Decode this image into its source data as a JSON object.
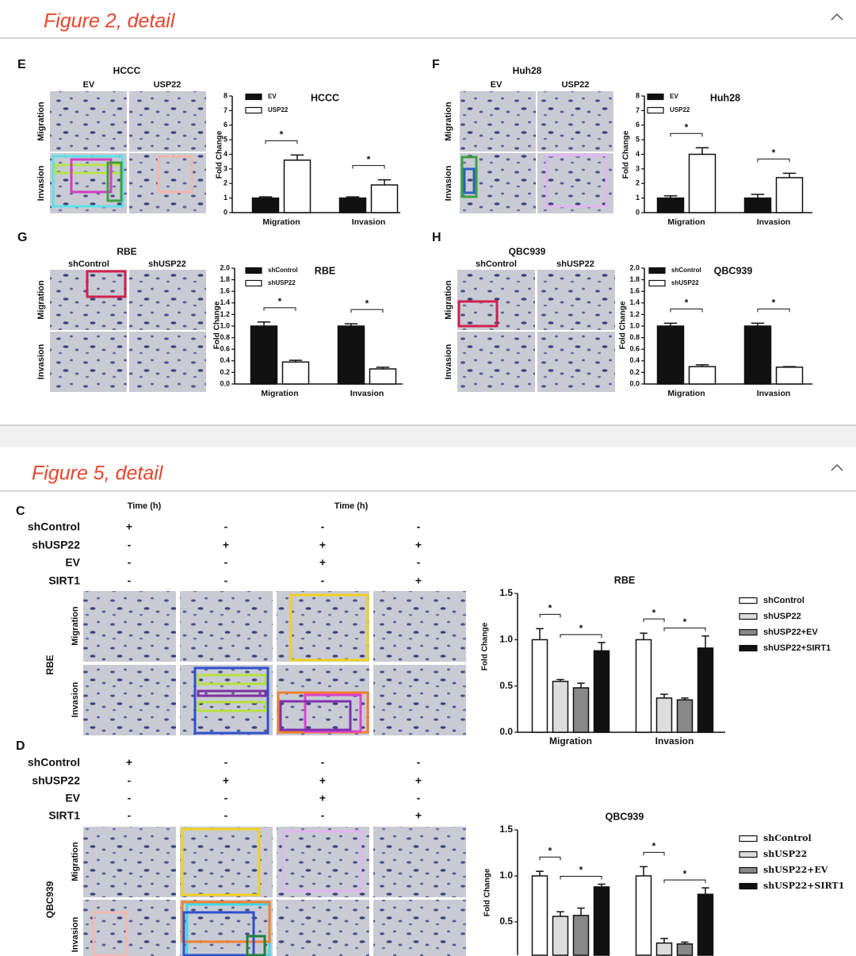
{
  "figure2": {
    "header": "Figure 2, detail",
    "panels": [
      {
        "letter": "E",
        "title": "HCCC",
        "columns": [
          "EV",
          "USP22"
        ],
        "rows": [
          "Migration",
          "Invasion"
        ]
      },
      {
        "letter": "F",
        "title": "Huh28",
        "columns": [
          "EV",
          "USP22"
        ],
        "rows": [
          "Migration",
          "Invasion"
        ]
      },
      {
        "letter": "G",
        "title": "RBE",
        "columns": [
          "shControl",
          "shUSP22"
        ],
        "rows": [
          "Migration",
          "Invasion"
        ]
      },
      {
        "letter": "H",
        "title": "QBC939",
        "columns": [
          "shControl",
          "shUSP22"
        ],
        "rows": [
          "Migration",
          "Invasion"
        ]
      }
    ]
  },
  "figure5": {
    "header": "Figure 5, detail",
    "time_labels": [
      "Time (h)",
      "Time (h)"
    ],
    "panels": [
      {
        "letter": "C",
        "title": "RBE",
        "rows": [
          "Migration",
          "Invasion"
        ],
        "conditions": [
          {
            "name": "shControl",
            "marks": [
              "+",
              "-",
              "-",
              "-"
            ]
          },
          {
            "name": "shUSP22",
            "marks": [
              "-",
              "+",
              "+",
              "+"
            ]
          },
          {
            "name": "EV",
            "marks": [
              "-",
              "-",
              "+",
              "-"
            ]
          },
          {
            "name": "SIRT1",
            "marks": [
              "-",
              "-",
              "-",
              "+"
            ]
          }
        ]
      },
      {
        "letter": "D",
        "title": "QBC939",
        "rows": [
          "Migration",
          "Invasion"
        ],
        "conditions": [
          {
            "name": "shControl",
            "marks": [
              "+",
              "-",
              "-",
              "-"
            ]
          },
          {
            "name": "shUSP22",
            "marks": [
              "-",
              "+",
              "+",
              "+"
            ]
          },
          {
            "name": "EV",
            "marks": [
              "-",
              "-",
              "+",
              "-"
            ]
          },
          {
            "name": "SIRT1",
            "marks": [
              "-",
              "-",
              "-",
              "+"
            ]
          }
        ]
      }
    ]
  },
  "chart_data": [
    {
      "type": "bar",
      "title": "HCCC",
      "ylabel": "Fold Change",
      "categories": [
        "Migration",
        "Invasion"
      ],
      "series": [
        {
          "name": "EV",
          "color": "#111111",
          "values": [
            1.0,
            1.0
          ],
          "errors": [
            0.08,
            0.08
          ]
        },
        {
          "name": "USP22",
          "color": "#ffffff",
          "values": [
            3.6,
            1.9
          ],
          "errors": [
            0.35,
            0.35
          ]
        }
      ],
      "ylim": [
        0,
        8
      ],
      "yticks": [
        0,
        1,
        2,
        3,
        4,
        5,
        6,
        7,
        8
      ],
      "annotations": [
        "*",
        "*"
      ]
    },
    {
      "type": "bar",
      "title": "Huh28",
      "ylabel": "Fold Change",
      "categories": [
        "Migration",
        "Invasion"
      ],
      "series": [
        {
          "name": "EV",
          "color": "#111111",
          "values": [
            1.0,
            1.0
          ],
          "errors": [
            0.15,
            0.25
          ]
        },
        {
          "name": "USP22",
          "color": "#ffffff",
          "values": [
            4.0,
            2.4
          ],
          "errors": [
            0.45,
            0.3
          ]
        }
      ],
      "ylim": [
        0,
        8
      ],
      "yticks": [
        0,
        1,
        2,
        3,
        4,
        5,
        6,
        7,
        8
      ],
      "annotations": [
        "*",
        "*"
      ]
    },
    {
      "type": "bar",
      "title": "RBE",
      "ylabel": "Fold Change",
      "categories": [
        "Migration",
        "Invasion"
      ],
      "series": [
        {
          "name": "shControl",
          "color": "#111111",
          "values": [
            1.0,
            1.0
          ],
          "errors": [
            0.07,
            0.04
          ]
        },
        {
          "name": "shUSP22",
          "color": "#ffffff",
          "values": [
            0.38,
            0.26
          ],
          "errors": [
            0.03,
            0.03
          ]
        }
      ],
      "ylim": [
        0,
        2
      ],
      "yticks": [
        {
          "value": 0,
          "label": "0.0"
        },
        0.2,
        0.4,
        0.6,
        0.8,
        {
          "value": 1,
          "label": "1.0"
        },
        1.2,
        1.4,
        1.6,
        1.8,
        {
          "value": 2,
          "label": "2.0"
        }
      ],
      "annotations": [
        "*",
        "*"
      ]
    },
    {
      "type": "bar",
      "title": "QBC939",
      "ylabel": "Fold Change",
      "categories": [
        "Migration",
        "Invasion"
      ],
      "series": [
        {
          "name": "shControl",
          "color": "#111111",
          "values": [
            1.0,
            1.0
          ],
          "errors": [
            0.05,
            0.05
          ]
        },
        {
          "name": "shUSP22",
          "color": "#ffffff",
          "values": [
            0.3,
            0.29
          ],
          "errors": [
            0.03,
            0.01
          ]
        }
      ],
      "ylim": [
        0,
        2
      ],
      "yticks": [
        {
          "value": 0,
          "label": "0.0"
        },
        0.2,
        0.4,
        0.6,
        0.8,
        {
          "value": 1,
          "label": "1.0"
        },
        1.2,
        1.4,
        1.6,
        1.8,
        {
          "value": 2,
          "label": "2.0"
        }
      ],
      "annotations": [
        "*",
        "*"
      ]
    },
    {
      "type": "bar",
      "title": "RBE",
      "ylabel": "Fold Change",
      "categories": [
        "Migration",
        "Invasion"
      ],
      "series": [
        {
          "name": "shControl",
          "color": "#ffffff",
          "values": [
            1.0,
            1.0
          ],
          "errors": [
            0.12,
            0.07
          ]
        },
        {
          "name": "shUSP22",
          "color": "#dddddd",
          "values": [
            0.55,
            0.37
          ],
          "errors": [
            0.02,
            0.04
          ]
        },
        {
          "name": "shUSP22+EV",
          "color": "#888888",
          "values": [
            0.48,
            0.35
          ],
          "errors": [
            0.05,
            0.02
          ]
        },
        {
          "name": "shUSP22+SIRT1",
          "color": "#111111",
          "values": [
            0.88,
            0.91
          ],
          "errors": [
            0.09,
            0.13
          ]
        }
      ],
      "ylim": [
        0,
        1.5
      ],
      "yticks": [
        {
          "value": 0,
          "label": "0.0"
        },
        0.5,
        {
          "value": 1,
          "label": "1.0"
        },
        {
          "value": 1.5,
          "label": "1.5"
        }
      ],
      "annotations": [
        "*",
        "*",
        "*",
        "*"
      ]
    },
    {
      "type": "bar",
      "title": "QBC939",
      "ylabel": "Fold Change",
      "series": [
        {
          "name": "shControl",
          "color": "#ffffff",
          "values": [
            1.0,
            1.0
          ],
          "errors": [
            0.05,
            0.1
          ]
        },
        {
          "name": "shUSP22",
          "color": "#dddddd",
          "values": [
            0.56,
            0.27
          ],
          "errors": [
            0.05,
            0.05
          ]
        },
        {
          "name": "shUSP22+EV",
          "color": "#888888",
          "values": [
            0.57,
            0.26
          ],
          "errors": [
            0.08,
            0.02
          ]
        },
        {
          "name": "shUSP22+SIRT1",
          "color": "#111111",
          "values": [
            0.88,
            0.8
          ],
          "errors": [
            0.03,
            0.07
          ]
        }
      ],
      "ylim": [
        0,
        1.5
      ],
      "yticks": [
        0.5,
        {
          "value": 1,
          "label": "1.0"
        },
        {
          "value": 1.5,
          "label": "1.5"
        }
      ],
      "annotations": [
        "*",
        "*",
        "*",
        "*"
      ]
    }
  ]
}
